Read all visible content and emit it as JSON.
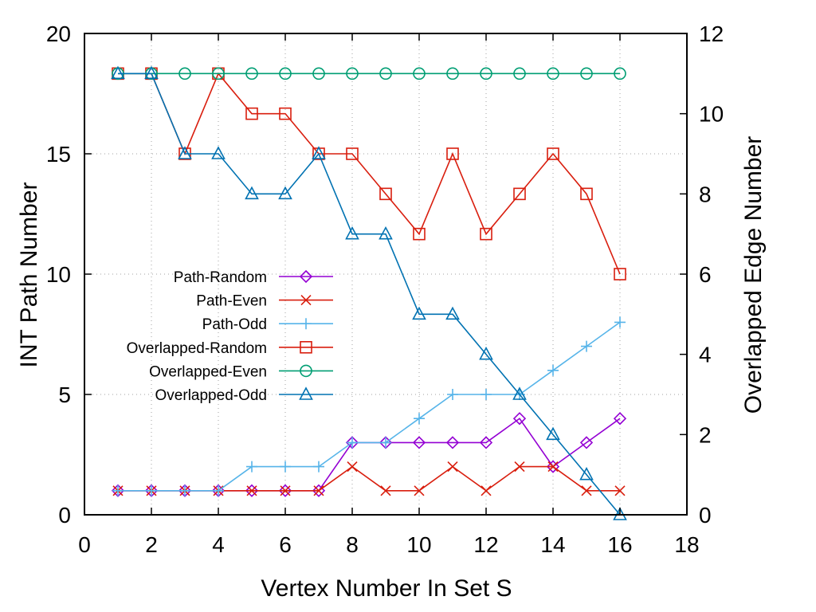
{
  "chart_data": {
    "type": "line",
    "title": "",
    "xlabel": "Vertex Number In Set S",
    "ylabel": "INT Path Number",
    "y2label": "Overlapped Edge Number",
    "xlim": [
      0,
      18
    ],
    "ylim": [
      0,
      20
    ],
    "y2lim": [
      0,
      12
    ],
    "xticks": [
      "0",
      "2",
      "4",
      "6",
      "8",
      "10",
      "12",
      "14",
      "16",
      "18"
    ],
    "yticks": [
      "0",
      "5",
      "10",
      "15",
      "20"
    ],
    "y2ticks": [
      "0",
      "2",
      "4",
      "6",
      "8",
      "10",
      "12"
    ],
    "grid": true,
    "legend_position": "center-left",
    "x": [
      1,
      2,
      3,
      4,
      5,
      6,
      7,
      8,
      9,
      10,
      11,
      12,
      13,
      14,
      15,
      16
    ],
    "series": [
      {
        "name": "Path-Random",
        "axis": "y",
        "color": "#9400d3",
        "marker": "diamond",
        "values": [
          1,
          1,
          1,
          1,
          1,
          1,
          1,
          3,
          3,
          3,
          3,
          3,
          4,
          2,
          3,
          4
        ]
      },
      {
        "name": "Path-Even",
        "axis": "y",
        "color": "#d91e0e",
        "marker": "cross",
        "values": [
          1,
          1,
          1,
          1,
          1,
          1,
          1,
          2,
          1,
          1,
          2,
          1,
          2,
          2,
          1,
          1
        ]
      },
      {
        "name": "Path-Odd",
        "axis": "y",
        "color": "#56b4e9",
        "marker": "plus",
        "values": [
          1,
          1,
          1,
          1,
          2,
          2,
          2,
          3,
          3,
          4,
          5,
          5,
          5,
          6,
          7,
          8
        ]
      },
      {
        "name": "Overlapped-Random",
        "axis": "y2",
        "color": "#d91e0e",
        "marker": "square",
        "values": [
          11,
          11,
          9,
          11,
          10,
          10,
          9,
          9,
          8,
          7,
          9,
          7,
          8,
          9,
          8,
          6
        ]
      },
      {
        "name": "Overlapped-Even",
        "axis": "y2",
        "color": "#009e73",
        "marker": "circle",
        "values": [
          11,
          11,
          11,
          11,
          11,
          11,
          11,
          11,
          11,
          11,
          11,
          11,
          11,
          11,
          11,
          11
        ]
      },
      {
        "name": "Overlapped-Odd",
        "axis": "y2",
        "color": "#0072b2",
        "marker": "triangle",
        "values": [
          11,
          11,
          9,
          9,
          8,
          8,
          9,
          7,
          7,
          5,
          5,
          4,
          3,
          2,
          1,
          0
        ]
      }
    ]
  }
}
